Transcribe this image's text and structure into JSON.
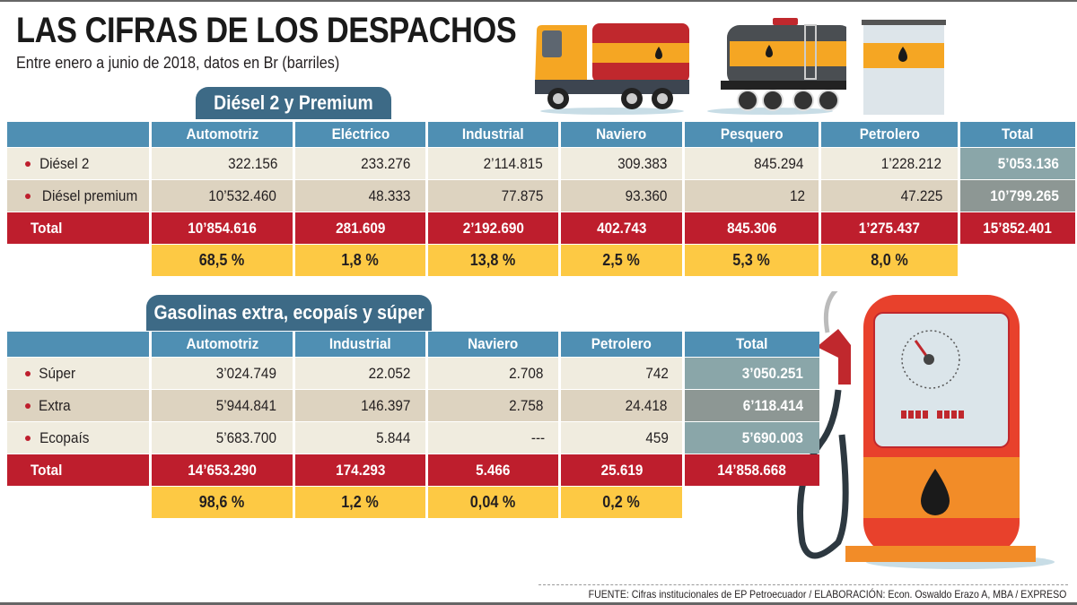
{
  "title": "LAS CIFRAS DE LOS DESPACHOS",
  "subtitle": "Entre enero a junio de 2018, datos en Br (barriles)",
  "diesel": {
    "section_title": "Diésel 2 y Premium",
    "columns": [
      "Automotriz",
      "Eléctrico",
      "Industrial",
      "Naviero",
      "Pesquero",
      "Petrolero",
      "Total"
    ],
    "rows": [
      {
        "label": "Diésel 2",
        "values": [
          "322.156",
          "233.276",
          "2’114.815",
          "309.383",
          "845.294",
          "1’228.212"
        ],
        "total": "5’053.136"
      },
      {
        "label": "Diésel premium",
        "values": [
          "10’532.460",
          "48.333",
          "77.875",
          "93.360",
          "12",
          "47.225"
        ],
        "total": "10’799.265"
      }
    ],
    "total_row": {
      "label": "Total",
      "values": [
        "10’854.616",
        "281.609",
        "2’192.690",
        "402.743",
        "845.306",
        "1’275.437"
      ],
      "total": "15’852.401"
    },
    "percent_row": [
      "68,5 %",
      "1,8 %",
      "13,8 %",
      "2,5 %",
      "5,3 %",
      "8,0 %"
    ]
  },
  "gasolinas": {
    "section_title": "Gasolinas extra, ecopaís y súper",
    "columns": [
      "Automotriz",
      "Industrial",
      "Naviero",
      "Petrolero",
      "Total"
    ],
    "rows": [
      {
        "label": "Súper",
        "values": [
          "3’024.749",
          "22.052",
          "2.708",
          "742"
        ],
        "total": "3’050.251"
      },
      {
        "label": "Extra",
        "values": [
          "5’944.841",
          "146.397",
          "2.758",
          "24.418"
        ],
        "total": "6’118.414"
      },
      {
        "label": "Ecopaís",
        "values": [
          "5’683.700",
          "5.844",
          "---",
          "459"
        ],
        "total": "5’690.003"
      }
    ],
    "total_row": {
      "label": "Total",
      "values": [
        "14’653.290",
        "174.293",
        "5.466",
        "25.619"
      ],
      "total": "14’858.668"
    },
    "percent_row": [
      "98,6 %",
      "1,2 %",
      "0,04 %",
      "0,2 %"
    ]
  },
  "footer": "FUENTE: Cifras institucionales de EP Petroecuador / ELABORACIÓN: Econ. Oswaldo Erazo A, MBA / EXPRESO",
  "colors": {
    "header_blue": "#4f8fb3",
    "tab_blue": "#3d6a86",
    "total_red": "#be1e2d",
    "percent_yellow": "#fdc944",
    "row_light": "#f0ecdf",
    "row_dark": "#ddd3c0"
  },
  "icons": [
    "tanker-truck-icon",
    "rail-tank-car-icon",
    "storage-tank-icon",
    "fuel-pump-icon",
    "oil-drop-icon"
  ]
}
